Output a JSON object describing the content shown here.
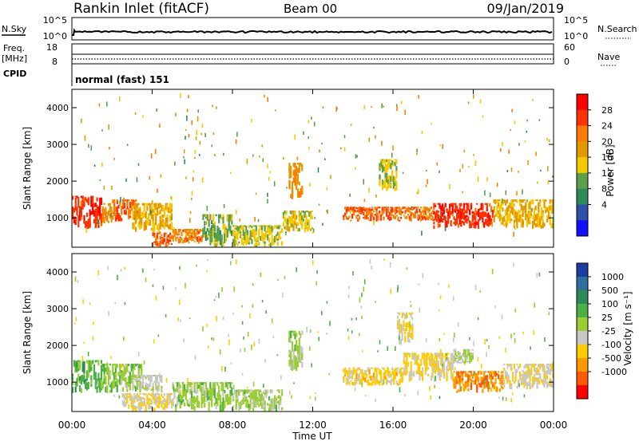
{
  "header": {
    "station": "Rankin Inlet (fitACF)",
    "beam": "Beam 00",
    "date": "09/Jan/2019"
  },
  "strip_nsky": {
    "left_label": "N.Sky",
    "right_label": "N.Search",
    "left_ticks": [
      "10^5",
      "10^0"
    ],
    "right_ticks": [
      "10^5",
      "10^0"
    ]
  },
  "strip_freq": {
    "left_label_1": "Freq.",
    "left_label_2": "[MHz]",
    "right_label": "Nave",
    "left_ticks": [
      "18",
      "8"
    ],
    "right_ticks": [
      "60",
      "0"
    ]
  },
  "strip_cpid": {
    "label": "CPID",
    "value": "normal (fast) 151"
  },
  "colorbar_power": {
    "label": "Power [dB]",
    "ticks": [
      "28",
      "24",
      "20",
      "16",
      "12",
      "8",
      "4"
    ],
    "colors": [
      "#ff0000",
      "#ff3300",
      "#ff7a00",
      "#e39a00",
      "#f5c800",
      "#5aa14b",
      "#2e8b57",
      "#2f4fa8",
      "#1010ff"
    ]
  },
  "colorbar_velocity": {
    "label": "Velocity [m s⁻¹]",
    "ticks": [
      "1000",
      "500",
      "100",
      "25",
      "-25",
      "-100",
      "-500",
      "-1000"
    ],
    "colors": [
      "#1b3fa0",
      "#2f6fa0",
      "#2e8b57",
      "#4cb044",
      "#9acd32",
      "#c8c8c8",
      "#ffcc00",
      "#ff9900",
      "#ff5a00",
      "#ff0000"
    ]
  },
  "x_axis": {
    "title": "Time UT",
    "ticks": [
      "00:00",
      "04:00",
      "08:00",
      "12:00",
      "16:00",
      "20:00",
      "00:00"
    ]
  },
  "chart_data": [
    {
      "type": "heatmap",
      "name": "power",
      "ylabel": "Slant Range [km]",
      "xlim": [
        0,
        24
      ],
      "ylim": [
        200,
        4500
      ],
      "yticks": [
        "1000",
        "2000",
        "3000",
        "4000"
      ],
      "clim": [
        0,
        30
      ],
      "bands": [
        {
          "t": [
            0.0,
            1.5
          ],
          "r": [
            700,
            1600
          ],
          "v": 27
        },
        {
          "t": [
            1.5,
            2.0
          ],
          "r": [
            800,
            1400
          ],
          "v": 20
        },
        {
          "t": [
            2.0,
            3.3
          ],
          "r": [
            900,
            1500
          ],
          "v": 24
        },
        {
          "t": [
            3.0,
            5.0
          ],
          "r": [
            600,
            1400
          ],
          "v": 17
        },
        {
          "t": [
            4.0,
            5.0
          ],
          "r": [
            200,
            600
          ],
          "v": 25
        },
        {
          "t": [
            5.0,
            6.5
          ],
          "r": [
            300,
            700
          ],
          "v": 22
        },
        {
          "t": [
            6.5,
            8.0
          ],
          "r": [
            200,
            1100
          ],
          "v": 12
        },
        {
          "t": [
            8.0,
            10.5
          ],
          "r": [
            200,
            800
          ],
          "v": 14
        },
        {
          "t": [
            10.8,
            11.5
          ],
          "r": [
            1500,
            2500
          ],
          "v": 20
        },
        {
          "t": [
            10.5,
            12.0
          ],
          "r": [
            600,
            1200
          ],
          "v": 15
        },
        {
          "t": [
            13.5,
            16.0
          ],
          "r": [
            900,
            1300
          ],
          "v": 24
        },
        {
          "t": [
            16.0,
            18.0
          ],
          "r": [
            900,
            1300
          ],
          "v": 23
        },
        {
          "t": [
            18.0,
            21.0
          ],
          "r": [
            700,
            1400
          ],
          "v": 27
        },
        {
          "t": [
            21.0,
            24.0
          ],
          "r": [
            700,
            1500
          ],
          "v": 17
        },
        {
          "t": [
            15.3,
            16.2
          ],
          "r": [
            1700,
            2600
          ],
          "v": 14
        }
      ]
    },
    {
      "type": "heatmap",
      "name": "velocity",
      "ylabel": "Slant Range [km]",
      "xlim": [
        0,
        24
      ],
      "ylim": [
        200,
        4500
      ],
      "yticks": [
        "1000",
        "2000",
        "3000",
        "4000"
      ],
      "clim": [
        -1000,
        1000
      ],
      "bands": [
        {
          "t": [
            0.0,
            1.5
          ],
          "r": [
            700,
            1600
          ],
          "v": 300
        },
        {
          "t": [
            1.5,
            3.5
          ],
          "r": [
            700,
            1500
          ],
          "v": 150
        },
        {
          "t": [
            3.0,
            4.5
          ],
          "r": [
            700,
            1200
          ],
          "v": -15
        },
        {
          "t": [
            2.5,
            5.0
          ],
          "r": [
            200,
            700
          ],
          "v": -200
        },
        {
          "t": [
            5.0,
            8.0
          ],
          "r": [
            200,
            1000
          ],
          "v": 120
        },
        {
          "t": [
            8.0,
            10.5
          ],
          "r": [
            200,
            800
          ],
          "v": 60
        },
        {
          "t": [
            10.8,
            11.5
          ],
          "r": [
            1300,
            2400
          ],
          "v": 80
        },
        {
          "t": [
            13.5,
            16.5
          ],
          "r": [
            900,
            1400
          ],
          "v": -300
        },
        {
          "t": [
            16.5,
            19.0
          ],
          "r": [
            1000,
            1800
          ],
          "v": -250
        },
        {
          "t": [
            19.0,
            20.0
          ],
          "r": [
            1500,
            1900
          ],
          "v": 0
        },
        {
          "t": [
            19.0,
            21.5
          ],
          "r": [
            700,
            1300
          ],
          "v": -600
        },
        {
          "t": [
            21.5,
            24.0
          ],
          "r": [
            800,
            1500
          ],
          "v": -200
        },
        {
          "t": [
            16.2,
            17.0
          ],
          "r": [
            2000,
            2900
          ],
          "v": -200
        }
      ]
    }
  ]
}
